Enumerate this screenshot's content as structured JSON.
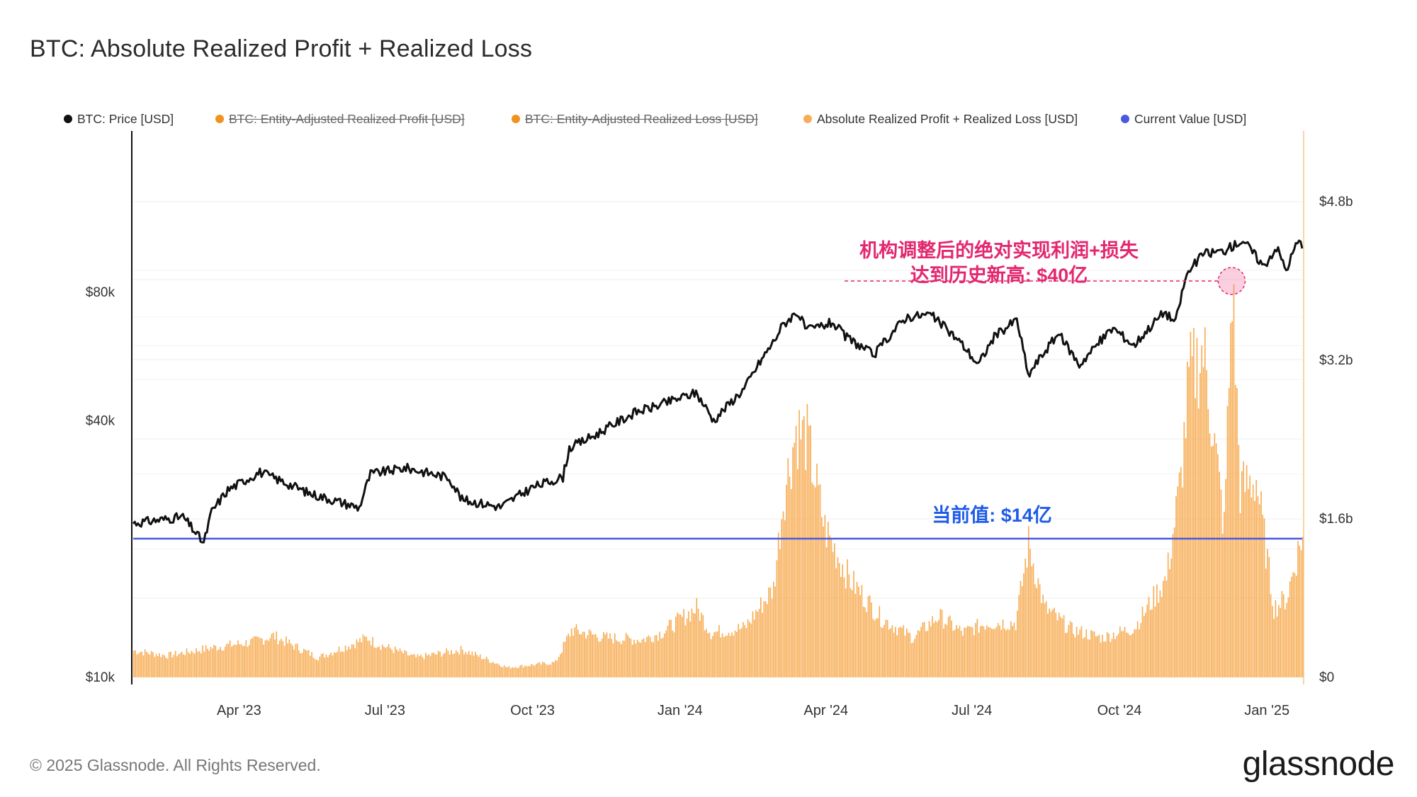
{
  "title": "BTC: Absolute Realized Profit + Realized Loss",
  "legend": [
    {
      "label": "BTC: Price [USD]",
      "color": "#111111",
      "disabled": false
    },
    {
      "label": "BTC: Entity-Adjusted Realized Profit [USD]",
      "color": "#f0921e",
      "disabled": true
    },
    {
      "label": "BTC: Entity-Adjusted Realized Loss [USD]",
      "color": "#f0921e",
      "disabled": true
    },
    {
      "label": "Absolute Realized Profit + Realized Loss [USD]",
      "color": "#f7ad55",
      "disabled": false
    },
    {
      "label": "Current Value [USD]",
      "color": "#4a59e0",
      "disabled": false
    }
  ],
  "annotations": {
    "ath_line1": "机构调整后的绝对实现利润+损失",
    "ath_line2": "达到历史新高: $40亿",
    "current": "当前值: $14亿"
  },
  "footer": "© 2025 Glassnode. All Rights Reserved.",
  "brand": "glassnode",
  "chart_data": {
    "type": "bar",
    "x_tick_labels": [
      "Apr '23",
      "Jul '23",
      "Oct '23",
      "Jan '24",
      "Apr '24",
      "Jul '24",
      "Oct '24",
      "Jan '25"
    ],
    "left_axis": {
      "label": "",
      "scale": "log",
      "ticks": [
        "$10k",
        "$40k",
        "$80k"
      ]
    },
    "right_axis": {
      "label": "",
      "ticks": [
        "$0",
        "$1.6b",
        "$3.2b",
        "$4.8b"
      ],
      "range": [
        0,
        5.6
      ]
    },
    "current_value_b": 1.4,
    "ath_value_b": 4.0,
    "series": [
      {
        "name": "BTC: Price [USD]",
        "kind": "line",
        "axis": "left",
        "x": [
          "2023-01-25",
          "2023-02-10",
          "2023-02-25",
          "2023-03-10",
          "2023-03-15",
          "2023-03-25",
          "2023-04-14",
          "2023-05-15",
          "2023-06-15",
          "2023-06-22",
          "2023-07-14",
          "2023-08-10",
          "2023-08-18",
          "2023-09-11",
          "2023-10-01",
          "2023-10-20",
          "2023-10-24",
          "2023-11-09",
          "2023-12-05",
          "2023-12-15",
          "2024-01-11",
          "2024-01-22",
          "2024-02-10",
          "2024-02-28",
          "2024-03-05",
          "2024-03-14",
          "2024-03-20",
          "2024-04-05",
          "2024-04-13",
          "2024-05-01",
          "2024-05-21",
          "2024-06-05",
          "2024-06-24",
          "2024-07-05",
          "2024-07-15",
          "2024-07-29",
          "2024-08-05",
          "2024-08-24",
          "2024-09-06",
          "2024-09-27",
          "2024-10-10",
          "2024-10-29",
          "2024-11-05",
          "2024-11-12",
          "2024-11-22",
          "2024-12-05",
          "2024-12-17",
          "2024-12-30",
          "2025-01-07",
          "2025-01-13",
          "2025-01-20",
          "2025-01-22"
        ],
        "values": [
          23000,
          23400,
          23800,
          20600,
          24500,
          27500,
          30300,
          27000,
          25000,
          30000,
          31000,
          29400,
          26100,
          25100,
          27900,
          29500,
          34500,
          37000,
          42000,
          43000,
          46500,
          40000,
          47500,
          61000,
          67000,
          72000,
          65000,
          68000,
          63000,
          57000,
          70000,
          71000,
          61000,
          54000,
          63000,
          69000,
          51000,
          64000,
          54000,
          66000,
          60000,
          72000,
          68000,
          88000,
          98500,
          100000,
          106000,
          92000,
          102000,
          90000,
          105000,
          104000
        ]
      },
      {
        "name": "Absolute Realized Profit + Realized Loss [USD]",
        "kind": "bar",
        "axis": "right",
        "unit": "billion USD",
        "x": [
          "2023-01-25",
          "2023-02-15",
          "2023-03-15",
          "2023-04-10",
          "2023-04-22",
          "2023-05-20",
          "2023-06-20",
          "2023-06-24",
          "2023-07-20",
          "2023-08-18",
          "2023-09-15",
          "2023-10-15",
          "2023-10-25",
          "2023-11-15",
          "2023-12-08",
          "2023-12-20",
          "2024-01-11",
          "2024-01-20",
          "2024-02-10",
          "2024-02-28",
          "2024-03-05",
          "2024-03-13",
          "2024-03-20",
          "2024-03-31",
          "2024-04-15",
          "2024-05-05",
          "2024-05-25",
          "2024-06-10",
          "2024-06-25",
          "2024-07-10",
          "2024-07-28",
          "2024-08-05",
          "2024-08-15",
          "2024-09-01",
          "2024-09-20",
          "2024-10-10",
          "2024-10-30",
          "2024-11-08",
          "2024-11-13",
          "2024-11-22",
          "2024-11-28",
          "2024-12-05",
          "2024-12-10",
          "2024-12-15",
          "2024-12-25",
          "2025-01-05",
          "2025-01-13",
          "2025-01-22"
        ],
        "values": [
          0.27,
          0.22,
          0.3,
          0.36,
          0.42,
          0.2,
          0.4,
          0.35,
          0.2,
          0.28,
          0.1,
          0.15,
          0.48,
          0.4,
          0.38,
          0.45,
          0.7,
          0.45,
          0.5,
          0.9,
          1.8,
          2.5,
          2.4,
          1.5,
          1.0,
          0.6,
          0.4,
          0.62,
          0.45,
          0.55,
          0.55,
          1.35,
          0.7,
          0.48,
          0.4,
          0.5,
          1.0,
          2.0,
          3.0,
          3.3,
          2.5,
          1.5,
          4.0,
          1.9,
          2.0,
          0.7,
          0.8,
          1.4
        ]
      }
    ]
  }
}
